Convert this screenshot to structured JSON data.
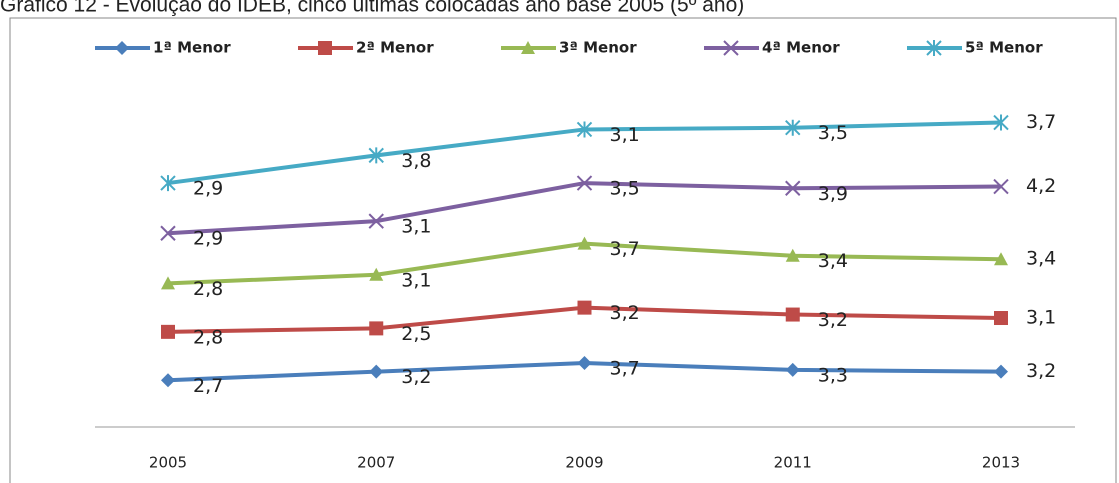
{
  "chart_data": {
    "type": "line",
    "stacked": true,
    "title": "Gráfico 12 - Evolução do IDEB, cinco últimas colocadas ano base 2005 (5º ano)",
    "categories": [
      "2005",
      "2007",
      "2009",
      "2011",
      "2013"
    ],
    "ylim": [
      0,
      20
    ],
    "series": [
      {
        "name": "1ª Menor",
        "color": "#4a7ebb",
        "marker": "diamond",
        "values": [
          2.7,
          3.2,
          3.7,
          3.3,
          3.2
        ],
        "value_labels": [
          "2,7",
          "3,2",
          "3,7",
          "3,3",
          "3,2"
        ]
      },
      {
        "name": "2ª Menor",
        "color": "#be4b48",
        "marker": "square",
        "values": [
          2.8,
          2.5,
          3.2,
          3.2,
          3.1
        ],
        "value_labels": [
          "2,8",
          "2,5",
          "3,2",
          "3,2",
          "3,1"
        ]
      },
      {
        "name": "3ª Menor",
        "color": "#98b954",
        "marker": "triangle",
        "values": [
          2.8,
          3.1,
          3.7,
          3.4,
          3.4
        ],
        "value_labels": [
          "2,8",
          "3,1",
          "3,7",
          "3,4",
          "3,4"
        ]
      },
      {
        "name": "4ª Menor",
        "color": "#7d60a0",
        "marker": "x",
        "values": [
          2.9,
          3.1,
          3.5,
          3.9,
          4.2
        ],
        "value_labels": [
          "2,9",
          "3,1",
          "3,5",
          "3,9",
          "4,2"
        ]
      },
      {
        "name": "5ª Menor",
        "color": "#46aac5",
        "marker": "star",
        "values": [
          2.9,
          3.8,
          3.1,
          3.5,
          3.7
        ],
        "value_labels": [
          "2,9",
          "3,8",
          "3,1",
          "3,5",
          "3,7"
        ]
      }
    ]
  }
}
